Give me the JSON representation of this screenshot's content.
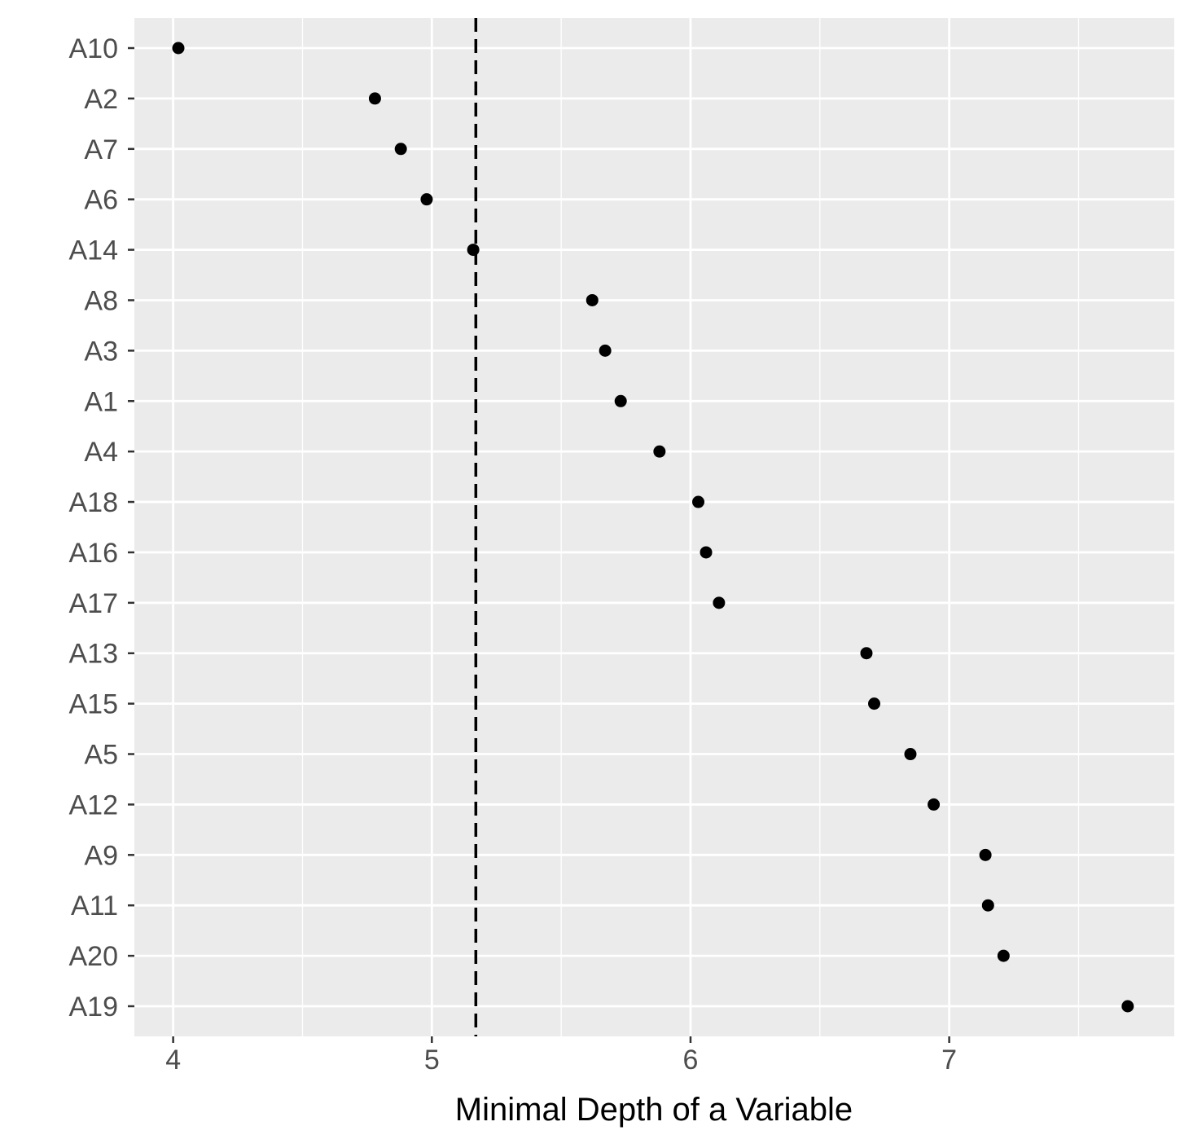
{
  "chart_data": {
    "type": "scatter",
    "title": "",
    "xlabel": "Minimal Depth of a Variable",
    "ylabel": "",
    "xlim": [
      3.85,
      7.87
    ],
    "xticks": [
      4,
      5,
      6,
      7
    ],
    "grid": true,
    "categories": [
      "A10",
      "A2",
      "A7",
      "A6",
      "A14",
      "A8",
      "A3",
      "A1",
      "A4",
      "A18",
      "A16",
      "A17",
      "A13",
      "A15",
      "A5",
      "A12",
      "A9",
      "A11",
      "A20",
      "A19"
    ],
    "values": [
      4.02,
      4.78,
      4.88,
      4.98,
      5.16,
      5.62,
      5.67,
      5.73,
      5.88,
      6.03,
      6.06,
      6.11,
      6.68,
      6.71,
      6.85,
      6.94,
      7.14,
      7.15,
      7.21,
      7.69
    ],
    "reference_line": {
      "x": 5.17,
      "style": "dashed"
    },
    "colors": {
      "panel": "#ebebeb",
      "grid": "#ffffff",
      "point": "#000000",
      "axis_text": "#4d4d4d",
      "ref_line": "#000000"
    }
  }
}
